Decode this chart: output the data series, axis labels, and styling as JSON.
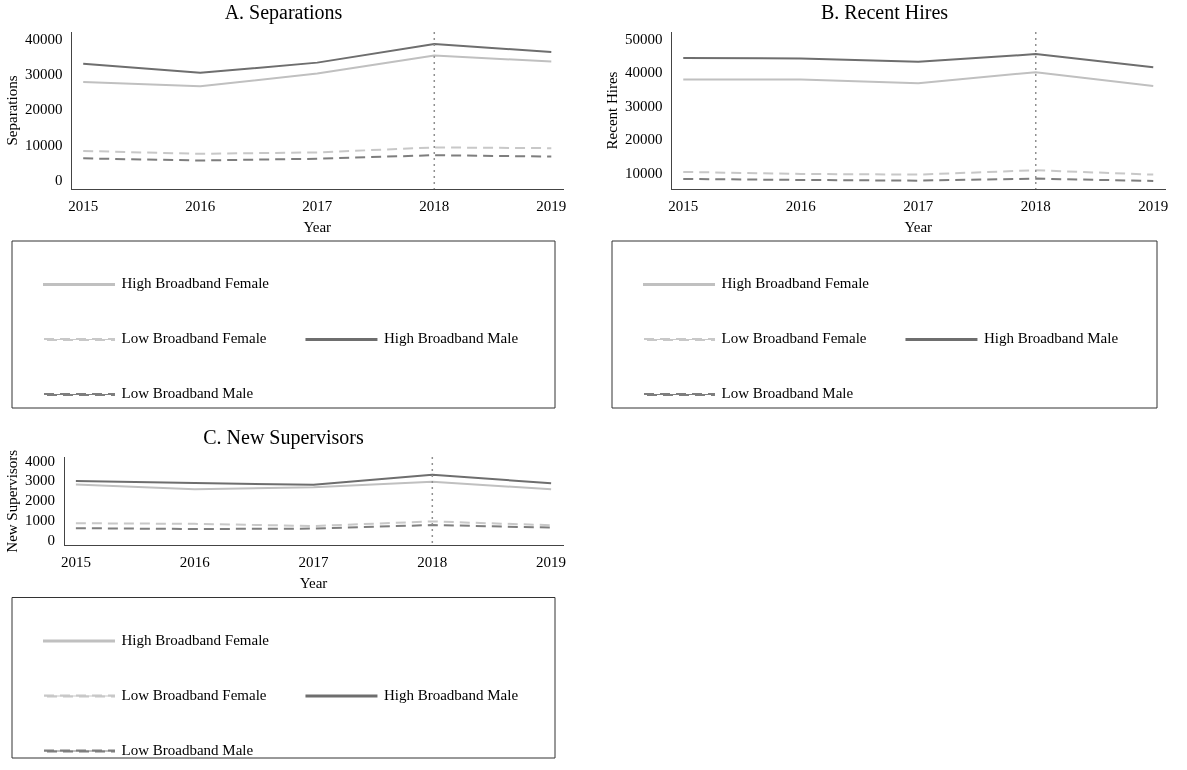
{
  "chart_data": [
    {
      "type": "line",
      "title": "A. Separations",
      "xlabel": "Year",
      "ylabel": "Separations",
      "x": [
        2015,
        2016,
        2017,
        2018,
        2019
      ],
      "xlim": [
        2014.9,
        2019.1
      ],
      "xticks": [
        2015,
        2016,
        2017,
        2018,
        2019
      ],
      "ylim": [
        -2300,
        42300
      ],
      "yticks": [
        0,
        10000,
        20000,
        30000,
        40000
      ],
      "grid": false,
      "legend": "bottom",
      "marker": "none",
      "ref_lines": [
        {
          "axis": "x",
          "value": 2018,
          "line_style": "dotted",
          "color": "#909090"
        }
      ],
      "series": [
        {
          "name": "High Broadband Female",
          "color": "#c0c0c0",
          "line_style": "solid",
          "values": [
            28100,
            26900,
            30500,
            35600,
            33900
          ]
        },
        {
          "name": "Low Broadband Female",
          "color": "#c8c8c8",
          "line_style": "dashed",
          "values": [
            8500,
            7700,
            8100,
            9500,
            9300
          ]
        },
        {
          "name": "High Broadband Male",
          "color": "#6e6e6e",
          "line_style": "solid",
          "values": [
            33300,
            30700,
            33600,
            38900,
            36600
          ]
        },
        {
          "name": "Low Broadband Male",
          "color": "#7e7e7e",
          "line_style": "dashed",
          "values": [
            6400,
            5800,
            6300,
            7300,
            6900
          ]
        }
      ]
    },
    {
      "type": "line",
      "title": "B. Recent Hires",
      "xlabel": "Year",
      "ylabel": "Recent Hires",
      "x": [
        2015,
        2016,
        2017,
        2018,
        2019
      ],
      "xlim": [
        2014.9,
        2019.1
      ],
      "xticks": [
        2015,
        2016,
        2017,
        2018,
        2019
      ],
      "ylim": [
        5500,
        52400
      ],
      "yticks": [
        10000,
        20000,
        30000,
        40000,
        50000
      ],
      "grid": false,
      "legend": "bottom",
      "marker": "none",
      "ref_lines": [
        {
          "axis": "x",
          "value": 2018,
          "line_style": "dotted",
          "color": "#909090"
        }
      ],
      "series": [
        {
          "name": "High Broadband Female",
          "color": "#c0c0c0",
          "line_style": "solid",
          "values": [
            38200,
            38200,
            37100,
            40400,
            36300
          ]
        },
        {
          "name": "Low Broadband Female",
          "color": "#c8c8c8",
          "line_style": "dashed",
          "values": [
            10600,
            10000,
            9800,
            11100,
            9800
          ]
        },
        {
          "name": "High Broadband Male",
          "color": "#6e6e6e",
          "line_style": "solid",
          "values": [
            44600,
            44500,
            43500,
            45800,
            41900
          ]
        },
        {
          "name": "Low Broadband Male",
          "color": "#7e7e7e",
          "line_style": "dashed",
          "values": [
            8500,
            8200,
            8000,
            8600,
            7900
          ]
        }
      ]
    },
    {
      "type": "line",
      "title": "C. New Supervisors",
      "xlabel": "Year",
      "ylabel": "New Supervisors",
      "x": [
        2015,
        2016,
        2017,
        2018,
        2019
      ],
      "xlim": [
        2014.9,
        2019.1
      ],
      "xticks": [
        2015,
        2016,
        2017,
        2018,
        2019
      ],
      "ylim": [
        -220,
        4230
      ],
      "yticks": [
        0,
        1000,
        2000,
        3000,
        4000
      ],
      "grid": false,
      "legend": "bottom",
      "marker": "none",
      "ref_lines": [
        {
          "axis": "x",
          "value": 2018,
          "line_style": "dotted",
          "color": "#909090"
        }
      ],
      "series": [
        {
          "name": "High Broadband Female",
          "color": "#c0c0c0",
          "line_style": "solid",
          "values": [
            2850,
            2610,
            2710,
            2980,
            2610
          ]
        },
        {
          "name": "Low Broadband Female",
          "color": "#c8c8c8",
          "line_style": "dashed",
          "values": [
            900,
            870,
            760,
            990,
            800
          ]
        },
        {
          "name": "High Broadband Male",
          "color": "#6e6e6e",
          "line_style": "solid",
          "values": [
            3020,
            2920,
            2830,
            3340,
            2910
          ]
        },
        {
          "name": "Low Broadband Male",
          "color": "#7e7e7e",
          "line_style": "dashed",
          "values": [
            650,
            610,
            630,
            810,
            680
          ]
        }
      ]
    }
  ]
}
